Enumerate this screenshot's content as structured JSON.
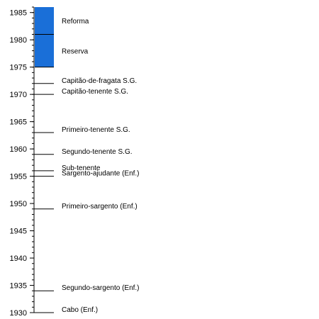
{
  "chart_data": {
    "type": "timeline",
    "y_axis": {
      "min": 1930,
      "max": 1986,
      "major_ticks": [
        1930,
        1935,
        1940,
        1945,
        1950,
        1955,
        1960,
        1965,
        1970,
        1975,
        1980,
        1985
      ],
      "minor_step": 1
    },
    "periods": [
      {
        "label": "Reserva",
        "start": 1975,
        "end": 1981,
        "color": "#1a6fd8"
      },
      {
        "label": "Reforma",
        "start": 1981,
        "end": 1986,
        "color": "#1a6fd8"
      }
    ],
    "events": [
      {
        "label": "Cabo (Enf.)",
        "year": 1930
      },
      {
        "label": "Segundo-sargento (Enf.)",
        "year": 1934
      },
      {
        "label": "Primeiro-sargento (Enf.)",
        "year": 1949
      },
      {
        "label": "Sargento-ajudante (Enf.)",
        "year": 1955
      },
      {
        "label": "Sub-tenente",
        "year": 1956
      },
      {
        "label": "Segundo-tenente S.G.",
        "year": 1959
      },
      {
        "label": "Primeiro-tenente S.G.",
        "year": 1963
      },
      {
        "label": "Capitão-tenente S.G.",
        "year": 1970
      },
      {
        "label": "Capitão-de-fragata S.G.",
        "year": 1972
      }
    ]
  }
}
